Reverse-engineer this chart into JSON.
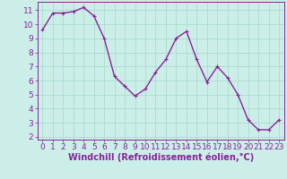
{
  "x": [
    0,
    1,
    2,
    3,
    4,
    5,
    6,
    7,
    8,
    9,
    10,
    11,
    12,
    13,
    14,
    15,
    16,
    17,
    18,
    19,
    20,
    21,
    22,
    23
  ],
  "y": [
    9.6,
    10.8,
    10.8,
    10.9,
    11.2,
    10.6,
    9.0,
    6.3,
    5.6,
    4.9,
    5.4,
    6.6,
    7.5,
    9.0,
    9.5,
    7.5,
    5.9,
    7.0,
    6.2,
    5.0,
    3.2,
    2.5,
    2.5,
    3.2
  ],
  "line_color": "#882299",
  "marker": "+",
  "marker_size": 3,
  "marker_lw": 0.8,
  "bg_color": "#cceee8",
  "grid_color": "#aaddcc",
  "xlabel": "Windchill (Refroidissement éolien,°C)",
  "xlim": [
    -0.5,
    23.5
  ],
  "ylim": [
    1.8,
    11.6
  ],
  "yticks": [
    2,
    3,
    4,
    5,
    6,
    7,
    8,
    9,
    10,
    11
  ],
  "xticks": [
    0,
    1,
    2,
    3,
    4,
    5,
    6,
    7,
    8,
    9,
    10,
    11,
    12,
    13,
    14,
    15,
    16,
    17,
    18,
    19,
    20,
    21,
    22,
    23
  ],
  "tick_color": "#882299",
  "label_color": "#882299",
  "font_size": 6.5,
  "xlabel_fontsize": 7,
  "linewidth": 1.0
}
